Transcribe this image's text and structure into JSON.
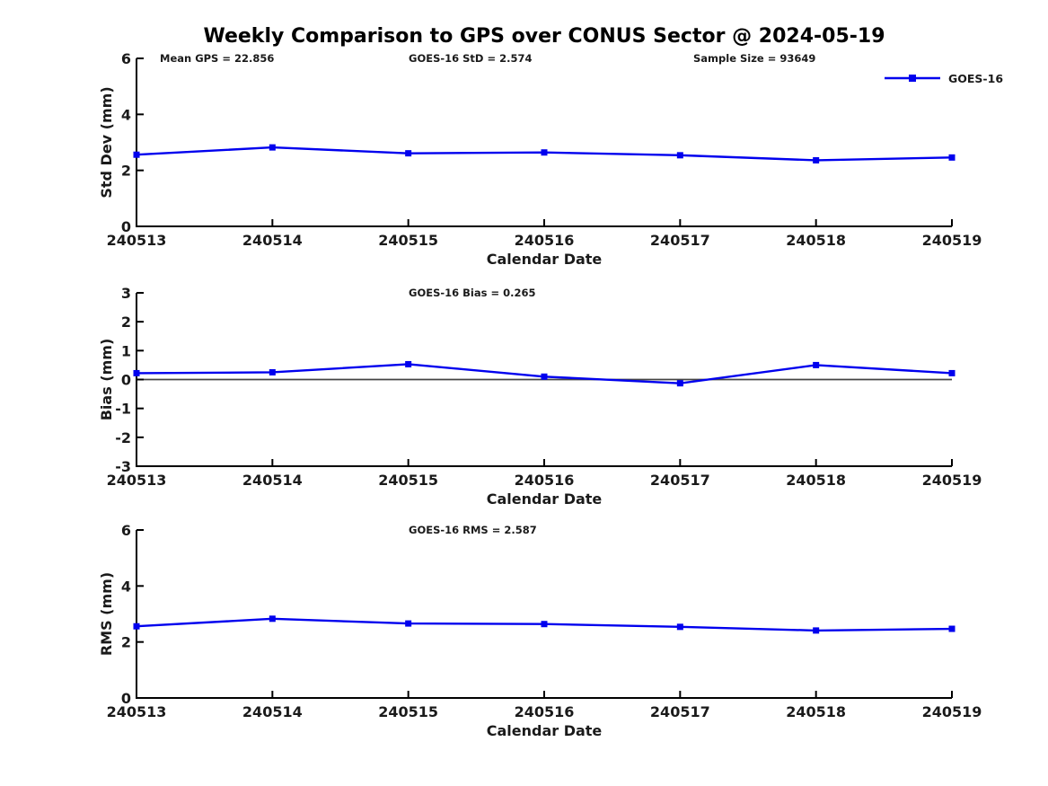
{
  "title": "Weekly Comparison to GPS over CONUS Sector @ 2024-05-19",
  "legend": {
    "label": "GOES-16"
  },
  "colors": {
    "series": "#0000EE",
    "axis": "#000000",
    "zero_line": "#444444",
    "text": "#1a1a1a"
  },
  "chart_data": [
    {
      "type": "line",
      "title": "",
      "annotations": [
        "Mean GPS = 22.856",
        "GOES-16 StD = 2.574",
        "Sample Size = 93649"
      ],
      "categories": [
        "240513",
        "240514",
        "240515",
        "240516",
        "240517",
        "240518",
        "240519"
      ],
      "series": [
        {
          "name": "GOES-16",
          "values": [
            2.56,
            2.82,
            2.61,
            2.64,
            2.54,
            2.36,
            2.46
          ]
        }
      ],
      "xlabel": "Calendar Date",
      "ylabel": "Std Dev (mm)",
      "ylim": [
        0,
        6
      ],
      "yticks": [
        0,
        2,
        4,
        6
      ],
      "grid": false,
      "legend_visible": true,
      "legend_position": "upper-right",
      "zero_line": false
    },
    {
      "type": "line",
      "title": "",
      "annotations": [
        "GOES-16 Bias  = 0.265"
      ],
      "categories": [
        "240513",
        "240514",
        "240515",
        "240516",
        "240517",
        "240518",
        "240519"
      ],
      "series": [
        {
          "name": "GOES-16",
          "values": [
            0.22,
            0.25,
            0.53,
            0.1,
            -0.13,
            0.5,
            0.22
          ]
        }
      ],
      "xlabel": "Calendar Date",
      "ylabel": "Bias (mm)",
      "ylim": [
        -3,
        3
      ],
      "yticks": [
        3,
        2,
        1,
        0,
        -1,
        -2,
        -3
      ],
      "grid": false,
      "legend_visible": false,
      "zero_line": true
    },
    {
      "type": "line",
      "title": "",
      "annotations": [
        "GOES-16 RMS = 2.587"
      ],
      "categories": [
        "240513",
        "240514",
        "240515",
        "240516",
        "240517",
        "240518",
        "240519"
      ],
      "series": [
        {
          "name": "GOES-16",
          "values": [
            2.56,
            2.83,
            2.66,
            2.64,
            2.54,
            2.41,
            2.47
          ]
        }
      ],
      "xlabel": "Calendar Date",
      "ylabel": "RMS (mm)",
      "ylim": [
        0,
        6
      ],
      "yticks": [
        0,
        2,
        4,
        6
      ],
      "grid": false,
      "legend_visible": false,
      "zero_line": false
    }
  ]
}
